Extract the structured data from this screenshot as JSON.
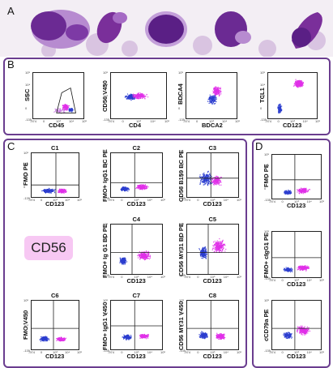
{
  "panels": {
    "A": "A",
    "B": "B",
    "C": "C",
    "D": "D"
  },
  "B_plots": [
    {
      "ylabel": "SSC",
      "xlabel": "CD45",
      "ticks_x": [
        "-940",
        "0",
        "10³",
        "10⁴",
        "10⁵"
      ],
      "ticks_y": [
        "10⁵",
        "10⁴",
        "10³",
        "0"
      ]
    },
    {
      "ylabel": "CD56 V450",
      "xlabel": "CD4",
      "ticks_x": [
        "0",
        "10³",
        "10⁴"
      ],
      "ticks_y": [
        "10⁵",
        "10⁴",
        "10³",
        "0"
      ]
    },
    {
      "ylabel": "BDCA4",
      "xlabel": "BDCA2",
      "ticks_x": [
        "-974",
        "0",
        "10³",
        "10⁴",
        "10⁵"
      ],
      "ticks_y": [
        "10⁵",
        "10⁴",
        "10³",
        "0"
      ]
    },
    {
      "ylabel": "TCL1",
      "xlabel": "CD123",
      "ticks_x": [
        "-974",
        "0",
        "10³",
        "10⁴",
        "10⁵"
      ],
      "ticks_y": [
        "10⁵",
        "10⁴",
        "10³",
        "0"
      ]
    }
  ],
  "C_plots": [
    {
      "title": "C1",
      "ylabel": "FMO PE",
      "xlabel": "CD123"
    },
    {
      "title": "C2",
      "ylabel": "FMO+ IgG1 BC PE",
      "xlabel": "CD123"
    },
    {
      "title": "C3",
      "ylabel": "CD56 B159 BC PE",
      "xlabel": "CD123"
    },
    {
      "title": "C4",
      "ylabel": "FMO+ Ig G1 BD PE",
      "xlabel": "CD123"
    },
    {
      "title": "C5",
      "ylabel": "CD56 MY31 BD PE",
      "xlabel": "CD123"
    },
    {
      "title": "C6",
      "ylabel": "FMO V450",
      "xlabel": "CD123"
    },
    {
      "title": "C7",
      "ylabel": "FMO+ IgG1 V450",
      "xlabel": "CD123"
    },
    {
      "title": "C8",
      "ylabel": "CD56 MY31 V450",
      "xlabel": "CD123"
    }
  ],
  "C_label": "CD56",
  "D_plots": [
    {
      "ylabel": "FMO PE",
      "xlabel": "CD123"
    },
    {
      "ylabel": "FMO+ cIgG1 PE",
      "xlabel": "CD123"
    },
    {
      "ylabel": "cCD79a PE",
      "xlabel": "CD123"
    }
  ],
  "tick_labels": {
    "x": [
      "-974",
      "0",
      "10³",
      "10⁴",
      "10⁵"
    ],
    "y": [
      "10⁵",
      "10⁴",
      "10³",
      "0",
      "-135"
    ]
  },
  "colors": {
    "frame": "#6a3d8f",
    "magenta": "#e030e8",
    "blue": "#2c3ecf",
    "cell_purple": "#7a2f9a",
    "nucleus": "#5a1f85"
  }
}
